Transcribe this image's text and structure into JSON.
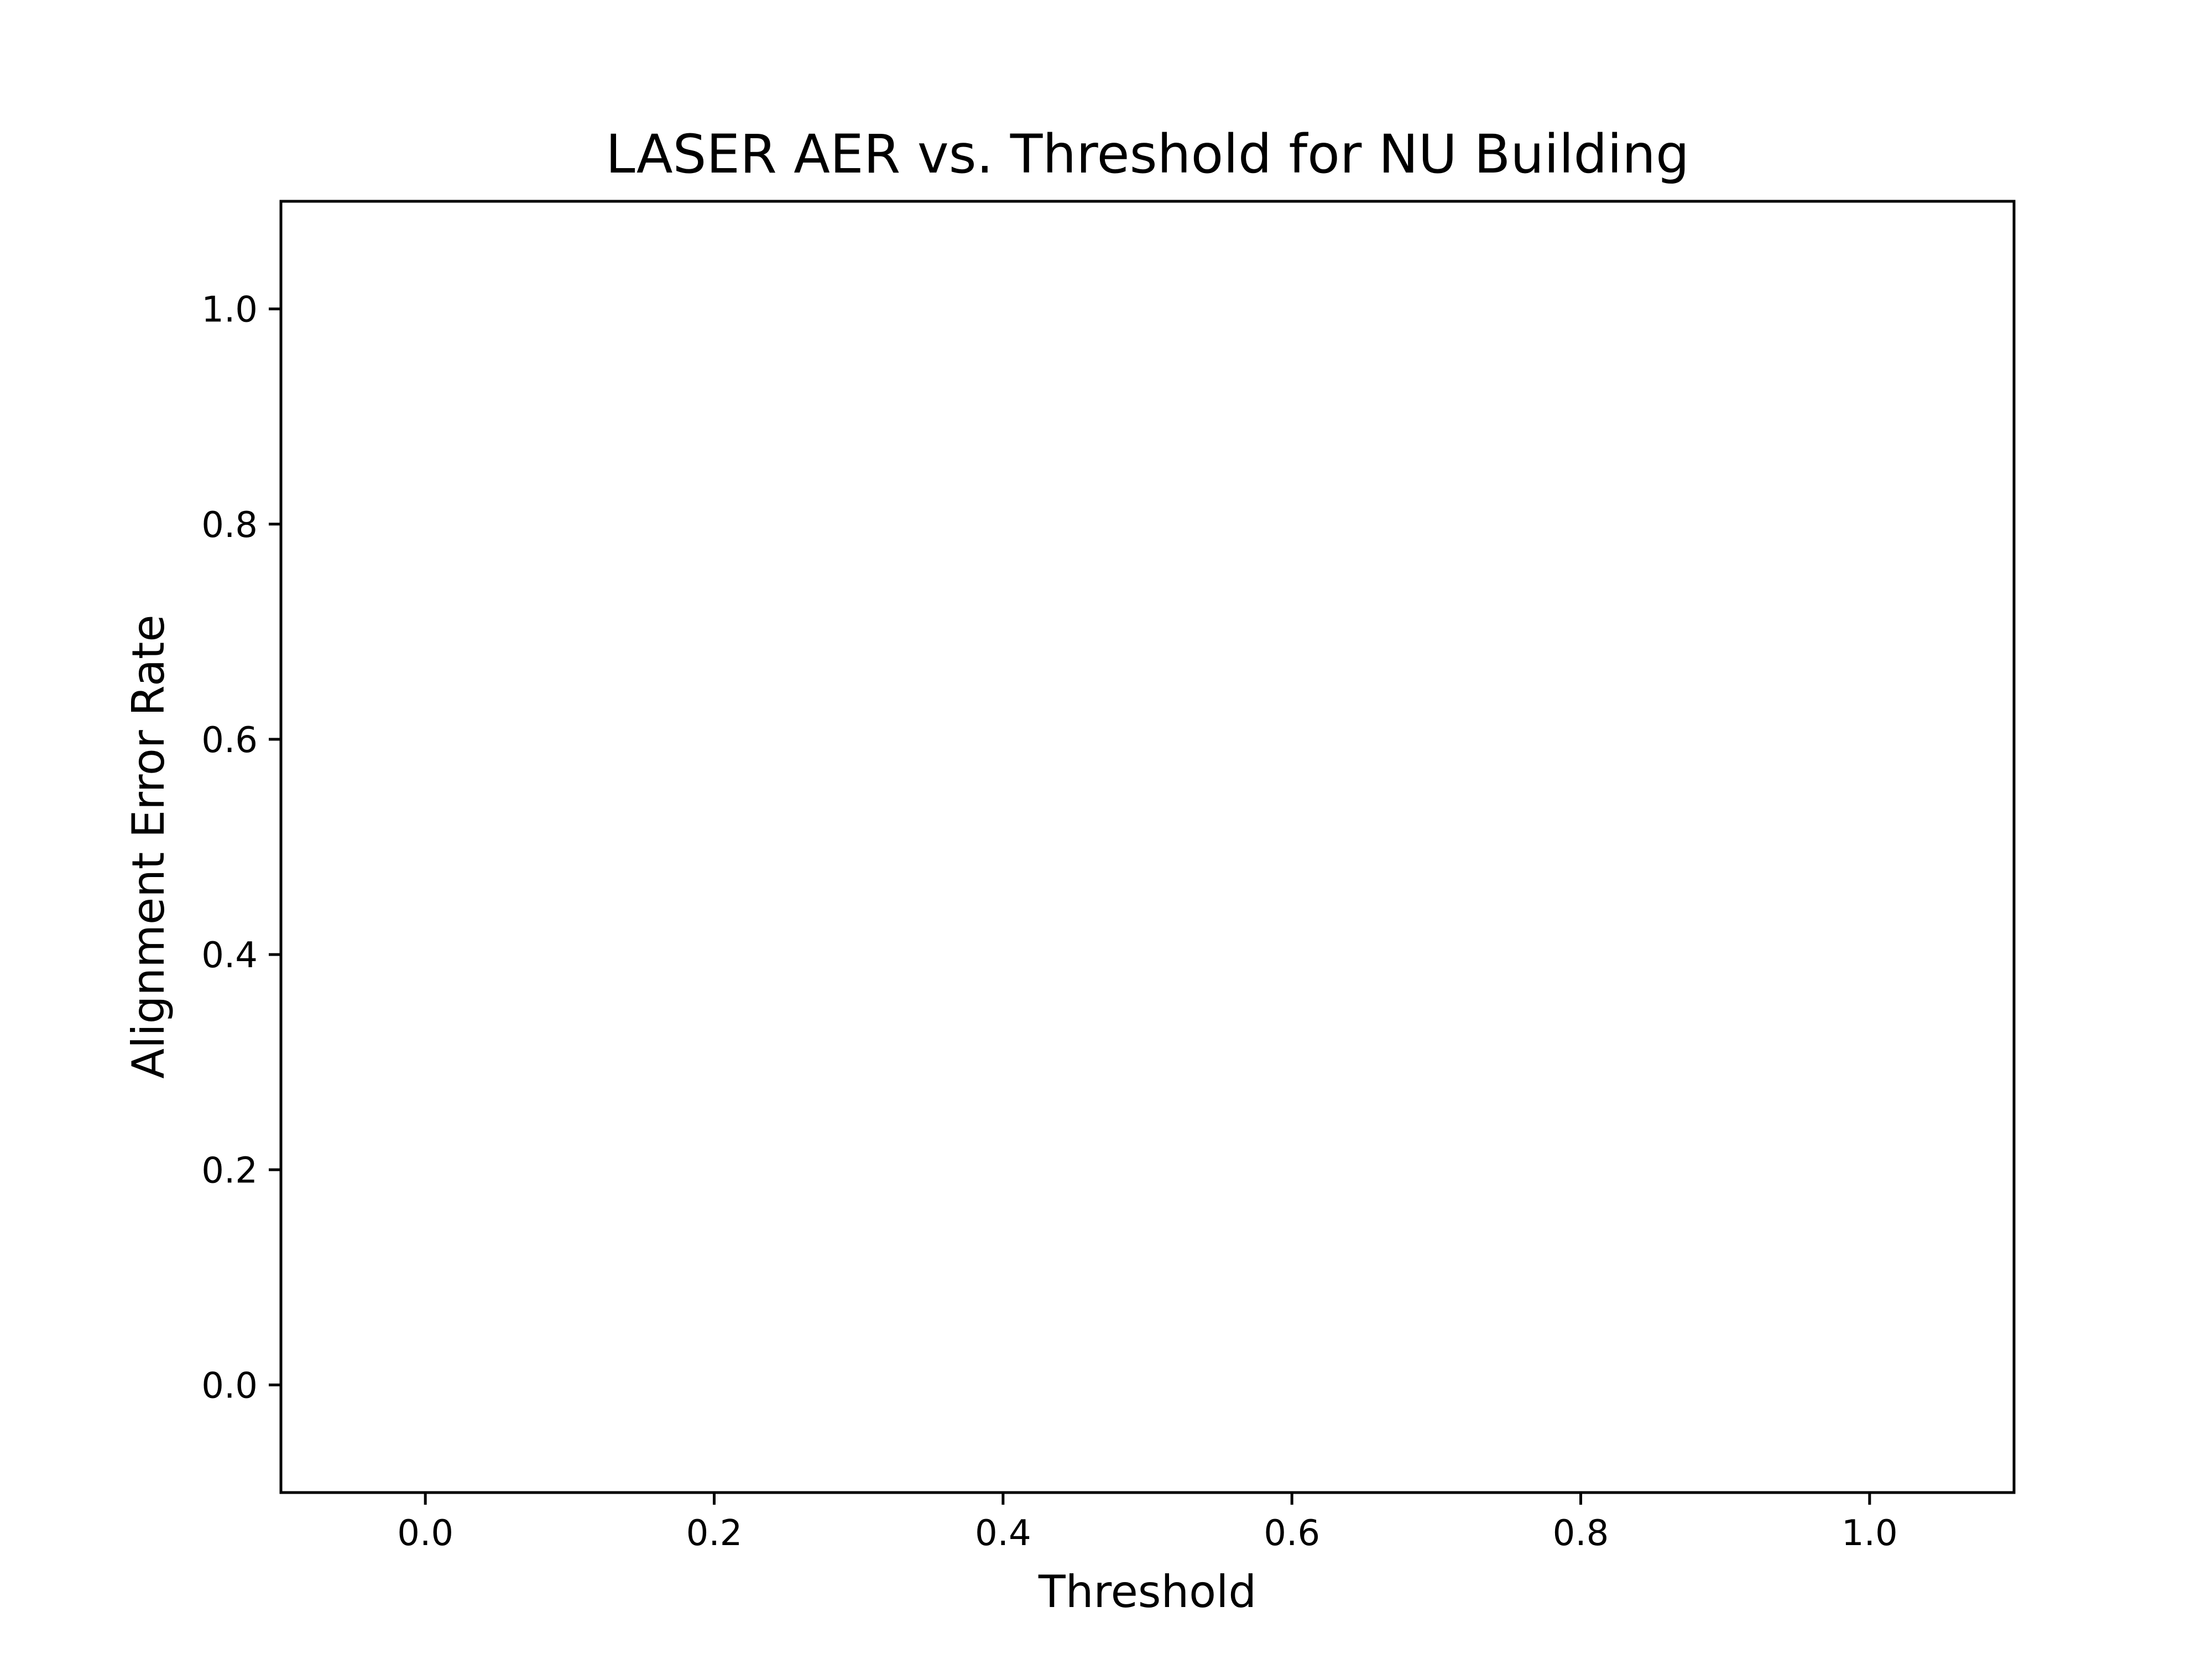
{
  "chart_data": {
    "type": "line",
    "title": "LASER AER vs. Threshold for NU Building",
    "xlabel": "Threshold",
    "ylabel": "Alignment Error Rate",
    "xlim": [
      -0.1,
      1.1
    ],
    "ylim": [
      -0.1,
      1.1
    ],
    "xticks": [
      0.0,
      0.2,
      0.4,
      0.6,
      0.8,
      1.0
    ],
    "yticks": [
      0.0,
      0.2,
      0.4,
      0.6,
      0.8,
      1.0
    ],
    "xtick_labels": [
      "0.0",
      "0.2",
      "0.4",
      "0.6",
      "0.8",
      "1.0"
    ],
    "ytick_labels": [
      "0.0",
      "0.2",
      "0.4",
      "0.6",
      "0.8",
      "1.0"
    ],
    "grid": false,
    "series": []
  }
}
